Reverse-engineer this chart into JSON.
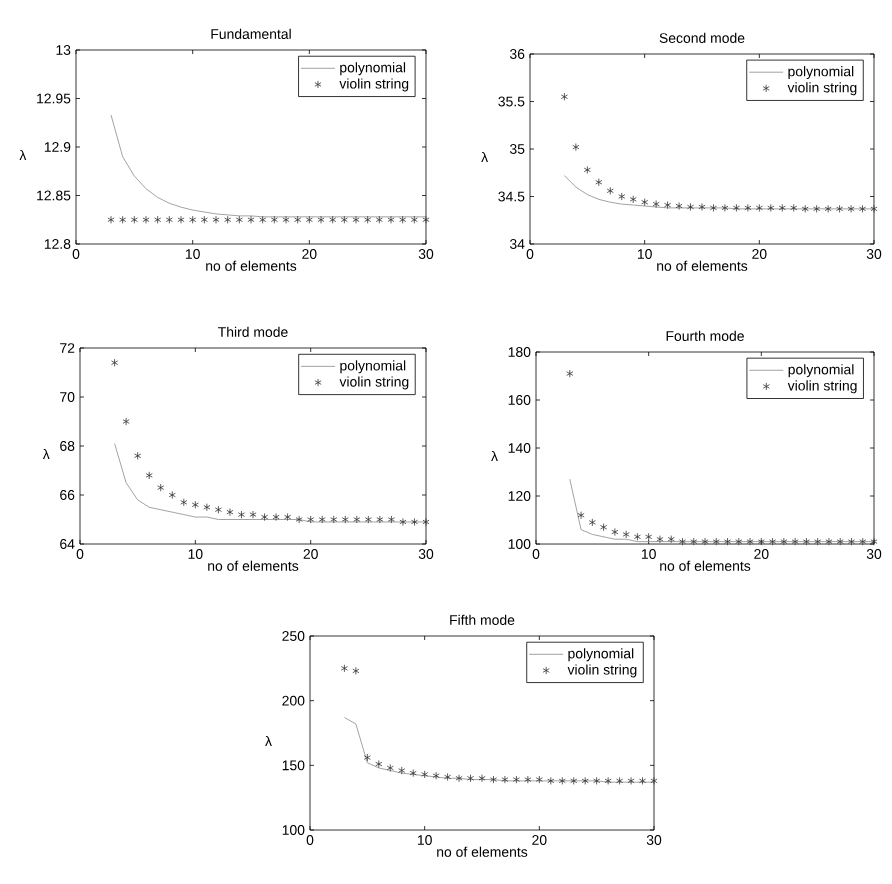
{
  "chart_data": [
    {
      "type": "line",
      "title": "Fundamental",
      "xlabel": "no of elements",
      "ylabel": "λ",
      "xlim": [
        0,
        30
      ],
      "ylim": [
        12.8,
        13
      ],
      "xticks": [
        0,
        10,
        20,
        30
      ],
      "yticks": [
        12.8,
        12.85,
        12.9,
        12.95,
        13
      ],
      "legend": "top right",
      "x": [
        3,
        4,
        5,
        6,
        7,
        8,
        9,
        10,
        11,
        12,
        13,
        14,
        15,
        16,
        17,
        18,
        19,
        20,
        21,
        22,
        23,
        24,
        25,
        26,
        27,
        28,
        29,
        30
      ],
      "series": [
        {
          "name": "polynomial",
          "marker": "none",
          "color": "#8c8c8c",
          "values": [
            12.933,
            12.89,
            12.87,
            12.857,
            12.848,
            12.842,
            12.838,
            12.835,
            12.833,
            12.831,
            12.83,
            12.829,
            12.829,
            12.828,
            12.828,
            12.828,
            12.828,
            12.828,
            12.828,
            12.828,
            12.828,
            12.828,
            12.828,
            12.828,
            12.828,
            12.828,
            12.828,
            12.828
          ]
        },
        {
          "name": "violin string",
          "type": "scatter",
          "marker": "cross",
          "color": "#333333",
          "values": [
            12.825,
            12.825,
            12.825,
            12.825,
            12.825,
            12.825,
            12.825,
            12.825,
            12.825,
            12.825,
            12.825,
            12.825,
            12.825,
            12.825,
            12.825,
            12.825,
            12.825,
            12.825,
            12.825,
            12.825,
            12.825,
            12.825,
            12.825,
            12.825,
            12.825,
            12.825,
            12.825,
            12.825
          ]
        }
      ]
    },
    {
      "type": "line",
      "title": "Second mode",
      "xlabel": "no of elements",
      "ylabel": "λ",
      "xlim": [
        0,
        30
      ],
      "ylim": [
        34,
        36
      ],
      "xticks": [
        0,
        10,
        20,
        30
      ],
      "yticks": [
        34,
        34.5,
        35,
        35.5,
        36
      ],
      "legend": "top right",
      "x": [
        3,
        4,
        5,
        6,
        7,
        8,
        9,
        10,
        11,
        12,
        13,
        14,
        15,
        16,
        17,
        18,
        19,
        20,
        21,
        22,
        23,
        24,
        25,
        26,
        27,
        28,
        29,
        30
      ],
      "series": [
        {
          "name": "polynomial",
          "marker": "none",
          "color": "#8c8c8c",
          "values": [
            34.72,
            34.6,
            34.52,
            34.47,
            34.44,
            34.42,
            34.41,
            34.4,
            34.39,
            34.38,
            34.38,
            34.38,
            34.38,
            34.38,
            34.38,
            34.37,
            34.37,
            34.37,
            34.37,
            34.37,
            34.37,
            34.37,
            34.37,
            34.37,
            34.37,
            34.37,
            34.37,
            34.37
          ]
        },
        {
          "name": "violin string",
          "type": "scatter",
          "marker": "cross",
          "color": "#333333",
          "values": [
            35.55,
            35.02,
            34.78,
            34.65,
            34.56,
            34.5,
            34.47,
            34.44,
            34.42,
            34.41,
            34.4,
            34.39,
            34.39,
            34.38,
            34.38,
            34.38,
            34.38,
            34.38,
            34.38,
            34.38,
            34.38,
            34.37,
            34.37,
            34.37,
            34.37,
            34.37,
            34.37,
            34.37
          ]
        }
      ]
    },
    {
      "type": "line",
      "title": "Third mode",
      "xlabel": "no of elements",
      "ylabel": "λ",
      "xlim": [
        0,
        30
      ],
      "ylim": [
        64,
        72
      ],
      "xticks": [
        0,
        10,
        20,
        30
      ],
      "yticks": [
        64,
        66,
        68,
        70,
        72
      ],
      "legend": "top right",
      "x": [
        3,
        4,
        5,
        6,
        7,
        8,
        9,
        10,
        11,
        12,
        13,
        14,
        15,
        16,
        17,
        18,
        19,
        20,
        21,
        22,
        23,
        24,
        25,
        26,
        27,
        28,
        29,
        30
      ],
      "series": [
        {
          "name": "polynomial",
          "marker": "none",
          "color": "#8c8c8c",
          "values": [
            68.1,
            66.5,
            65.8,
            65.5,
            65.4,
            65.3,
            65.2,
            65.1,
            65.1,
            65.0,
            65.0,
            65.0,
            65.0,
            65.0,
            65.0,
            65.0,
            65.0,
            64.9,
            64.9,
            64.9,
            64.9,
            64.9,
            64.9,
            64.9,
            64.9,
            64.9,
            64.9,
            64.9
          ]
        },
        {
          "name": "violin string",
          "type": "scatter",
          "marker": "cross",
          "color": "#333333",
          "values": [
            71.4,
            69.0,
            67.6,
            66.8,
            66.3,
            66.0,
            65.7,
            65.6,
            65.5,
            65.4,
            65.3,
            65.2,
            65.2,
            65.1,
            65.1,
            65.1,
            65.0,
            65.0,
            65.0,
            65.0,
            65.0,
            65.0,
            65.0,
            65.0,
            65.0,
            64.9,
            64.9,
            64.9
          ]
        }
      ]
    },
    {
      "type": "line",
      "title": "Fourth mode",
      "xlabel": "no of elements",
      "ylabel": "λ",
      "xlim": [
        0,
        30
      ],
      "ylim": [
        100,
        180
      ],
      "xticks": [
        0,
        10,
        20,
        30
      ],
      "yticks": [
        100,
        120,
        140,
        160,
        180
      ],
      "legend": "top right",
      "x": [
        3,
        4,
        5,
        6,
        7,
        8,
        9,
        10,
        11,
        12,
        13,
        14,
        15,
        16,
        17,
        18,
        19,
        20,
        21,
        22,
        23,
        24,
        25,
        26,
        27,
        28,
        29,
        30
      ],
      "series": [
        {
          "name": "polynomial",
          "marker": "none",
          "color": "#8c8c8c",
          "values": [
            127,
            106,
            104,
            103,
            102,
            102,
            101,
            101,
            101,
            101,
            101,
            101,
            101,
            101,
            101,
            101,
            101,
            101,
            101,
            101,
            101,
            101,
            101,
            101,
            101,
            101,
            101,
            101
          ]
        },
        {
          "name": "violin string",
          "type": "scatter",
          "marker": "cross",
          "color": "#333333",
          "values": [
            171,
            112,
            109,
            107,
            105,
            104,
            103,
            103,
            102,
            102,
            101,
            101,
            101,
            101,
            101,
            101,
            101,
            101,
            101,
            101,
            101,
            101,
            101,
            101,
            101,
            101,
            101,
            101
          ]
        }
      ]
    },
    {
      "type": "line",
      "title": "Fifth mode",
      "xlabel": "no of elements",
      "ylabel": "λ",
      "xlim": [
        0,
        30
      ],
      "ylim": [
        100,
        250
      ],
      "xticks": [
        0,
        10,
        20,
        30
      ],
      "yticks": [
        100,
        150,
        200,
        250
      ],
      "legend": "top right",
      "x": [
        3,
        4,
        5,
        6,
        7,
        8,
        9,
        10,
        11,
        12,
        13,
        14,
        15,
        16,
        17,
        18,
        19,
        20,
        21,
        22,
        23,
        24,
        25,
        26,
        27,
        28,
        29,
        30
      ],
      "series": [
        {
          "name": "polynomial",
          "marker": "none",
          "color": "#8c8c8c",
          "values": [
            187,
            182,
            152,
            148,
            146,
            144,
            143,
            142,
            141,
            140,
            140,
            139,
            139,
            139,
            138,
            138,
            138,
            138,
            138,
            138,
            138,
            138,
            138,
            137,
            137,
            137,
            137,
            137
          ]
        },
        {
          "name": "violin string",
          "type": "scatter",
          "marker": "cross",
          "color": "#333333",
          "values": [
            225,
            223,
            156,
            151,
            148,
            146,
            144,
            143,
            142,
            141,
            140,
            140,
            140,
            139,
            139,
            139,
            139,
            139,
            138,
            138,
            138,
            138,
            138,
            138,
            138,
            138,
            138,
            138
          ]
        }
      ]
    }
  ]
}
